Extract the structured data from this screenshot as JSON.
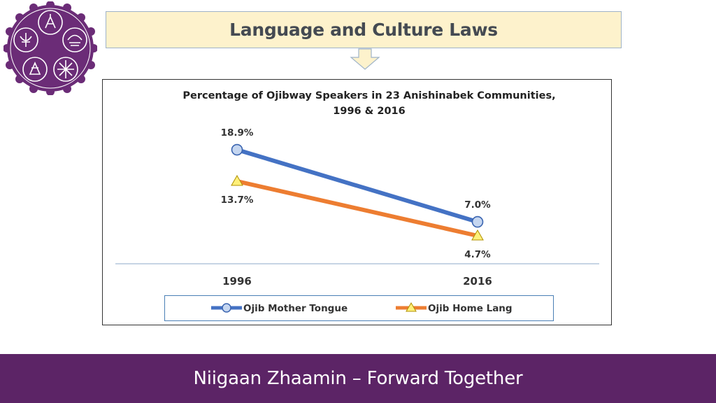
{
  "header": {
    "title": "Language and Culture Laws"
  },
  "footer": {
    "tagline": "Niigaan Zhaamin – Forward Together"
  },
  "colors": {
    "purple": "#5c2466",
    "title_bg": "#fdf2cc",
    "mother_tongue": "#4472c4",
    "home_lang": "#ed7d31",
    "text": "#333333"
  },
  "chart_data": {
    "type": "line",
    "title": "Percentage of Ojibway Speakers in 23 Anishinabek Communities, 1996 & 2016",
    "title_lines": [
      "Percentage of Ojibway Speakers in 23 Anishinabek Communities,",
      "1996 & 2016"
    ],
    "categories": [
      "1996",
      "2016"
    ],
    "series": [
      {
        "name": "Ojib Mother Tongue",
        "values": [
          18.9,
          7.0
        ],
        "labels": [
          "18.9%",
          "7.0%"
        ],
        "marker": "circle",
        "color": "#4472c4",
        "marker_fill": "#c5d6f0"
      },
      {
        "name": "Ojib Home Lang",
        "values": [
          13.7,
          4.7
        ],
        "labels": [
          "13.7%",
          "4.7%"
        ],
        "marker": "triangle",
        "color": "#ed7d31",
        "marker_fill": "#fff07a"
      }
    ],
    "xlabel": "",
    "ylabel": "",
    "ylim": [
      0,
      25
    ],
    "grid": false,
    "legend_position": "bottom"
  }
}
